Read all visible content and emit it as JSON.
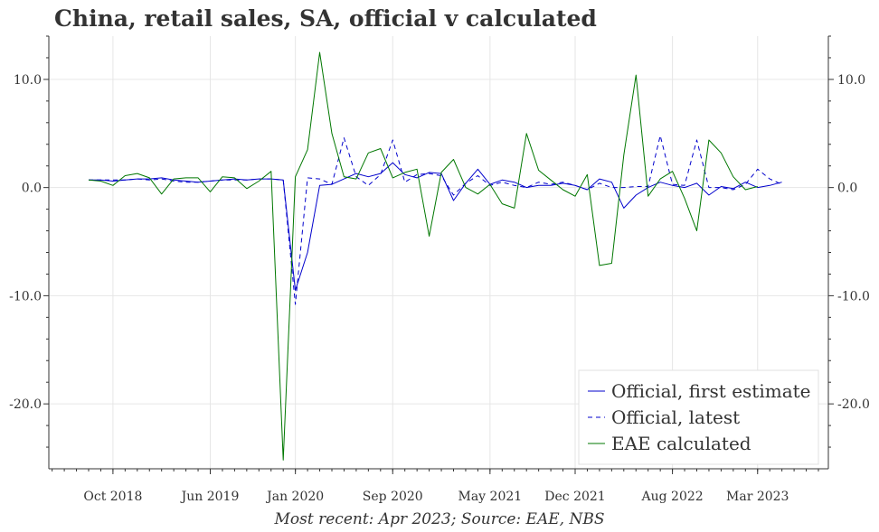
{
  "title": "China, retail sales, SA, official v calculated",
  "footer": "Most recent: Apr 2023; Source: EAE, NBS",
  "colors": {
    "first": "#0000cc",
    "latest": "#0000cc",
    "eae": "#007700",
    "grid": "#e6e6e6",
    "axis": "#333333"
  },
  "chart_data": {
    "type": "line",
    "title": "China, retail sales, SA, official v calculated",
    "ylim": [
      -26,
      14
    ],
    "y_ticks": [
      10,
      0,
      -10,
      -20
    ],
    "y_tick_labels": [
      "10.0",
      "0.0",
      "-10.0",
      "-20.0"
    ],
    "x_tick_labels": [
      "Oct 2018",
      "Jun 2019",
      "Jan 2020",
      "Sep 2020",
      "May 2021",
      "Dec 2021",
      "Aug 2022",
      "Mar 2023"
    ],
    "x_tick_dates": [
      "2018-10",
      "2019-06",
      "2020-01",
      "2020-09",
      "2021-05",
      "2021-12",
      "2022-08",
      "2023-03"
    ],
    "x_start": "2018-08",
    "grid": true,
    "legend_position": "bottom-right",
    "series": [
      {
        "name": "Official, first estimate",
        "style": "solid",
        "color": "#0000cc",
        "values": [
          0.7,
          0.7,
          0.6,
          0.7,
          0.8,
          0.8,
          0.9,
          0.7,
          0.6,
          0.5,
          0.6,
          0.7,
          0.8,
          0.7,
          0.8,
          0.8,
          0.7,
          -9.5,
          -6.0,
          0.2,
          0.3,
          0.8,
          1.3,
          1.0,
          1.3,
          2.3,
          1.2,
          0.9,
          1.4,
          1.3,
          -1.2,
          0.4,
          1.7,
          0.3,
          0.7,
          0.5,
          0.0,
          0.2,
          0.2,
          0.4,
          0.2,
          -0.2,
          0.8,
          0.5,
          -1.9,
          -0.7,
          0.0,
          0.5,
          0.2,
          0.0,
          0.4,
          -0.7,
          0.1,
          -0.1,
          0.5,
          0.0,
          0.2,
          0.5
        ]
      },
      {
        "name": "Official, latest",
        "style": "dashed",
        "color": "#0000cc",
        "values": [
          0.7,
          0.7,
          0.7,
          0.7,
          0.8,
          0.7,
          0.8,
          0.6,
          0.5,
          0.5,
          0.6,
          0.7,
          0.7,
          0.7,
          0.8,
          0.8,
          0.7,
          -10.8,
          0.9,
          0.8,
          0.3,
          4.6,
          1.0,
          0.2,
          1.2,
          4.4,
          0.5,
          1.2,
          1.3,
          1.1,
          -0.7,
          0.4,
          1.1,
          0.2,
          0.5,
          0.2,
          0.0,
          0.5,
          0.3,
          0.5,
          0.2,
          -0.2,
          0.4,
          0.0,
          0.0,
          0.1,
          0.1,
          4.8,
          0.3,
          0.2,
          4.4,
          0.0,
          0.0,
          -0.2,
          0.3,
          1.7,
          0.8,
          0.3
        ]
      },
      {
        "name": "EAE calculated",
        "style": "solid",
        "color": "#007700",
        "values": [
          0.7,
          0.6,
          0.2,
          1.1,
          1.3,
          0.9,
          -0.6,
          0.8,
          0.9,
          0.9,
          -0.4,
          1.0,
          0.9,
          -0.1,
          0.6,
          1.5,
          -25.2,
          1.0,
          3.5,
          12.5,
          5.0,
          1.0,
          0.8,
          3.2,
          3.6,
          0.9,
          1.4,
          1.7,
          -4.5,
          1.4,
          2.6,
          0.0,
          -0.6,
          0.3,
          -1.5,
          -1.9,
          5.0,
          1.6,
          0.7,
          -0.2,
          -0.8,
          1.2,
          -7.2,
          -7.0,
          3.0,
          10.4,
          -0.8,
          0.8,
          1.5,
          -1.0,
          -4.0,
          4.4,
          3.2,
          1.0,
          -0.2,
          0.1
        ]
      }
    ]
  }
}
